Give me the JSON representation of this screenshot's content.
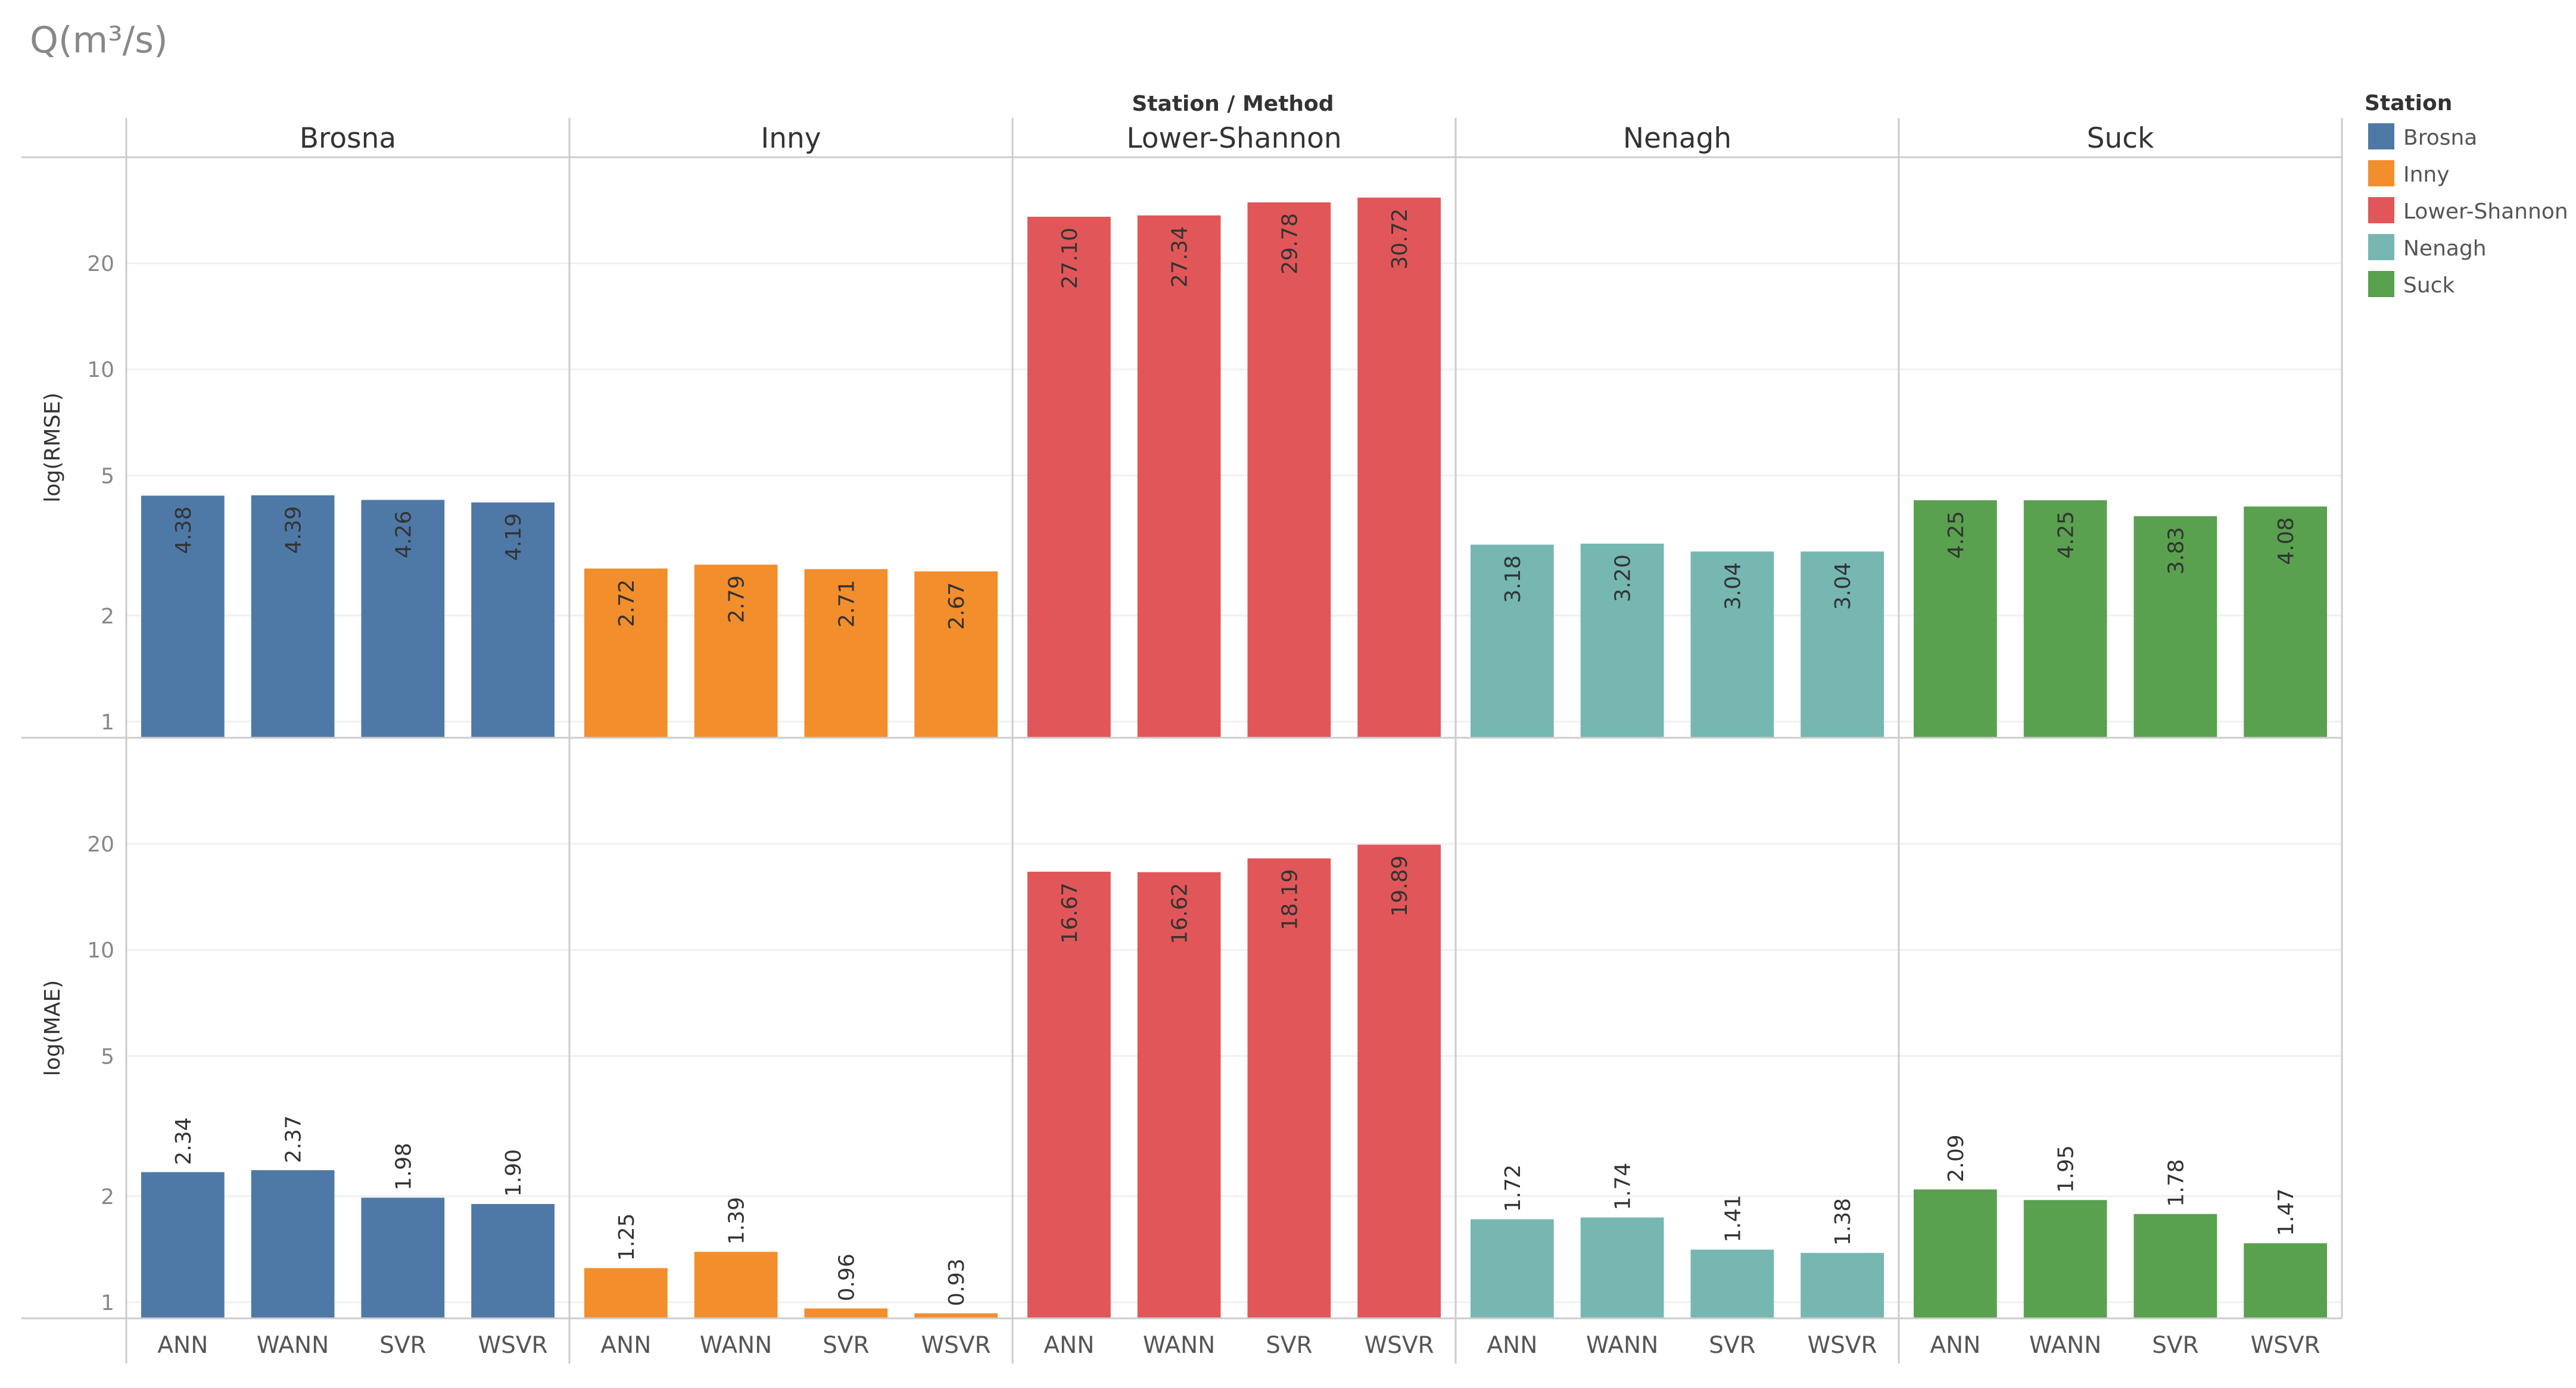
{
  "page_title": "Q(m³/s)",
  "chart_data": {
    "type": "bar",
    "title": "Q(m³/s)",
    "column_header": "Station / Method",
    "stations": [
      "Brosna",
      "Inny",
      "Lower-Shannon",
      "Nenagh",
      "Suck"
    ],
    "methods": [
      "ANN",
      "WANN",
      "SVR",
      "WSVR"
    ],
    "y_scale": "log",
    "ylim": [
      0.9,
      40
    ],
    "yticks": [
      1,
      2,
      5,
      10,
      20
    ],
    "panels": [
      {
        "ylabel": "log(RMSE)",
        "values": {
          "Brosna": [
            4.38,
            4.39,
            4.26,
            4.19
          ],
          "Inny": [
            2.72,
            2.79,
            2.71,
            2.67
          ],
          "Lower-Shannon": [
            27.1,
            27.34,
            29.78,
            30.72
          ],
          "Nenagh": [
            3.18,
            3.2,
            3.04,
            3.04
          ],
          "Suck": [
            4.25,
            4.25,
            3.83,
            4.08
          ]
        },
        "labels": {
          "Brosna": [
            "4.38",
            "4.39",
            "4.26",
            "4.19"
          ],
          "Inny": [
            "2.72",
            "2.79",
            "2.71",
            "2.67"
          ],
          "Lower-Shannon": [
            "27.10",
            "27.34",
            "29.78",
            "30.72"
          ],
          "Nenagh": [
            "3.18",
            "3.20",
            "3.04",
            "3.04"
          ],
          "Suck": [
            "4.25",
            "4.25",
            "3.83",
            "4.08"
          ]
        }
      },
      {
        "ylabel": "log(MAE)",
        "values": {
          "Brosna": [
            2.34,
            2.37,
            1.98,
            1.9
          ],
          "Inny": [
            1.25,
            1.39,
            0.96,
            0.93
          ],
          "Lower-Shannon": [
            16.67,
            16.62,
            18.19,
            19.89
          ],
          "Nenagh": [
            1.72,
            1.74,
            1.41,
            1.38
          ],
          "Suck": [
            2.09,
            1.95,
            1.78,
            1.47
          ]
        },
        "labels": {
          "Brosna": [
            "2.34",
            "2.37",
            "1.98",
            "1.90"
          ],
          "Inny": [
            "1.25",
            "1.39",
            "0.96",
            "0.93"
          ],
          "Lower-Shannon": [
            "16.67",
            "16.62",
            "18.19",
            "19.89"
          ],
          "Nenagh": [
            "1.72",
            "1.74",
            "1.41",
            "1.38"
          ],
          "Suck": [
            "2.09",
            "1.95",
            "1.78",
            "1.47"
          ]
        }
      }
    ],
    "colors": {
      "Brosna": "#4e79a7",
      "Inny": "#f28e2b",
      "Lower-Shannon": "#e15759",
      "Nenagh": "#76b7b2",
      "Suck": "#59a14f"
    },
    "legend": {
      "title": "Station",
      "position": "top-right",
      "entries": [
        "Brosna",
        "Inny",
        "Lower-Shannon",
        "Nenagh",
        "Suck"
      ]
    }
  }
}
